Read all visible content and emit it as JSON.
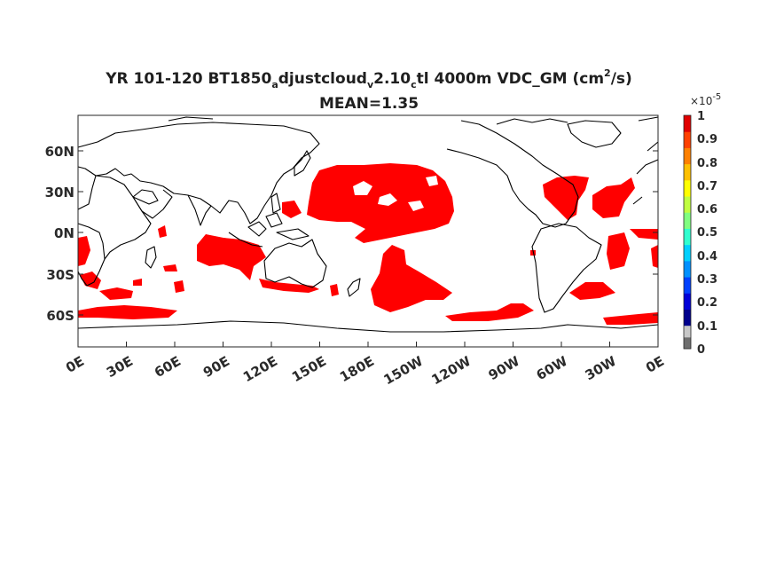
{
  "title": {
    "line1": [
      "YR 101-120 BT1850",
      "a",
      "djustcloud",
      "v",
      "2.10",
      "c",
      "tl 4000m VDC_GM (cm",
      "2",
      "/s)"
    ],
    "line2": "MEAN=1.35"
  },
  "map": {
    "lon_ticks": [
      "0E",
      "30E",
      "60E",
      "90E",
      "120E",
      "150E",
      "180E",
      "150W",
      "120W",
      "90W",
      "60W",
      "30W",
      "0E"
    ],
    "lat_ticks": [
      "60N",
      "30N",
      "0N",
      "30S",
      "60S"
    ],
    "lon_range": [
      0,
      360
    ],
    "lat_range": [
      -80,
      90
    ],
    "shaded_color": "#ff0000",
    "coastline_color": "#000000"
  },
  "colorbar": {
    "exponent": "×10",
    "exponent_power": "-5",
    "ticks": [
      "1",
      "0.9",
      "0.8",
      "0.7",
      "0.6",
      "0.5",
      "0.4",
      "0.3",
      "0.2",
      "0.1",
      "0"
    ],
    "colors": [
      "#6e6e6e",
      "#c8c8c8",
      "#00008c",
      "#0000d8",
      "#0040ff",
      "#0090ff",
      "#00d0ff",
      "#30ffcf",
      "#80ff80",
      "#c0ff40",
      "#ffff00",
      "#ffc000",
      "#ff8000",
      "#ff4000",
      "#e00000"
    ]
  }
}
